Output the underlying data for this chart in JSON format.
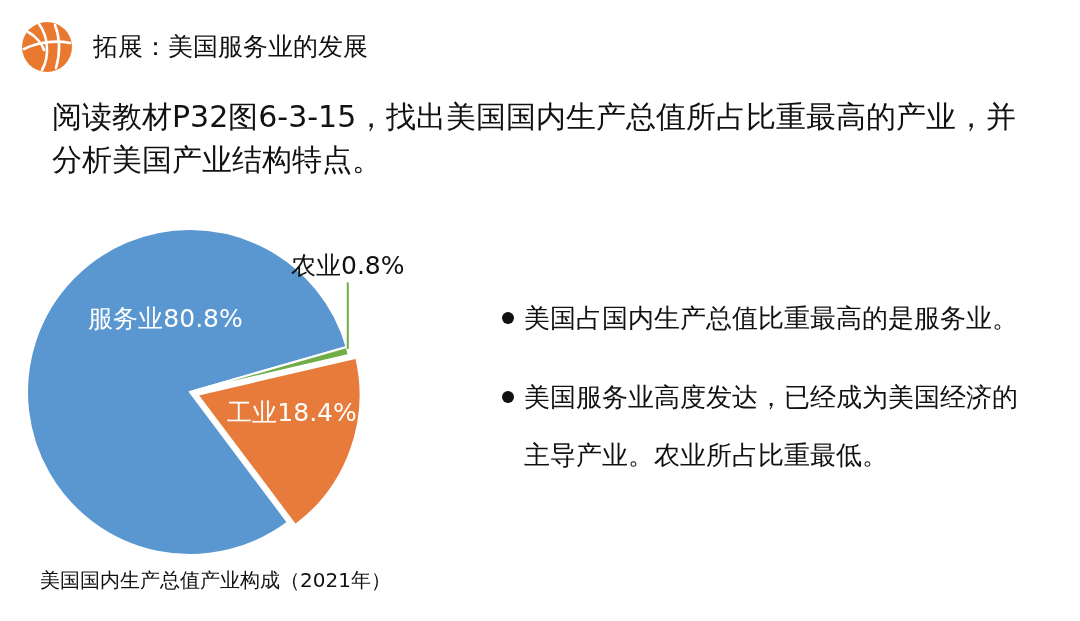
{
  "chart_data": {
    "type": "pie",
    "title": "拓展：美国服务业的发展",
    "subtitle": "阅读教材P32图6-3-15，找出美国国内生产总值所占比重最高的产业，并分析美国产业结构特点。",
    "categories": [
      "服务业",
      "工业",
      "农业"
    ],
    "values": [
      80.8,
      18.4,
      0.8
    ],
    "colors": [
      "#5a97d0",
      "#e77b3c",
      "#70ad47"
    ],
    "value_labels": [
      "80.8%",
      "18.4%",
      "0.8%"
    ],
    "annotations": [
      "美国国内生产总值产业构成（2021年）",
      "美国占国内生产总值比重最高的是服务业。",
      "美国服务业高度发达，已经成为美国经济的主导产业。农业所占比重最低。"
    ]
  }
}
